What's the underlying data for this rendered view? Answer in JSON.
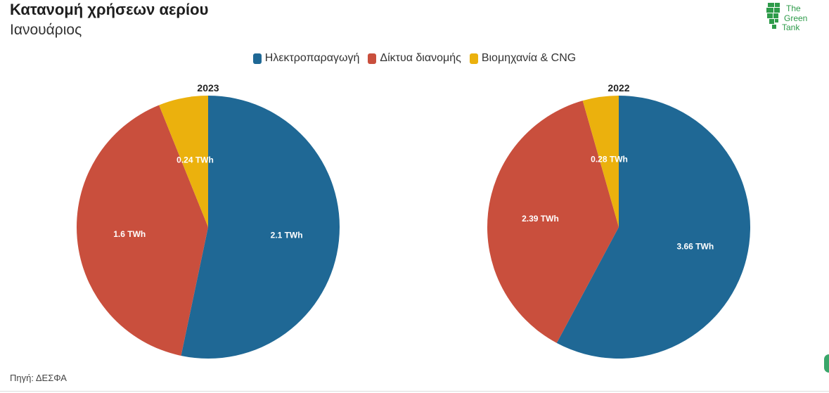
{
  "header": {
    "title": "Κατανομή χρήσεων αερίου",
    "subtitle": "Ιανουάριος"
  },
  "logo": {
    "line1": "The",
    "line2": "Green",
    "line3": "Tank",
    "color": "#2e9b4a"
  },
  "legend": [
    {
      "label": "Ηλεκτροπαραγωγή",
      "color": "#1f6895"
    },
    {
      "label": "Δίκτυα διανομής",
      "color": "#c94f3d"
    },
    {
      "label": "Βιομηχανία & CNG",
      "color": "#ebb10d"
    }
  ],
  "source": "Πηγή: ΔΕΣΦΑ",
  "chart_data": [
    {
      "type": "pie",
      "title": "2023",
      "unit": "TWh",
      "labels": [
        "Ηλεκτροπαραγωγή",
        "Δίκτυα διανομής",
        "Βιομηχανία & CNG"
      ],
      "values": [
        2.1,
        1.6,
        0.24
      ],
      "value_labels": [
        "2.1 TWh",
        "1.6 TWh",
        "0.24 TWh"
      ],
      "colors": [
        "#1f6895",
        "#c94f3d",
        "#ebb10d"
      ]
    },
    {
      "type": "pie",
      "title": "2022",
      "unit": "TWh",
      "labels": [
        "Ηλεκτροπαραγωγή",
        "Δίκτυα διανομής",
        "Βιομηχανία & CNG"
      ],
      "values": [
        3.66,
        2.39,
        0.28
      ],
      "value_labels": [
        "3.66 TWh",
        "2.39 TWh",
        "0.28 TWh"
      ],
      "colors": [
        "#1f6895",
        "#c94f3d",
        "#ebb10d"
      ]
    }
  ]
}
